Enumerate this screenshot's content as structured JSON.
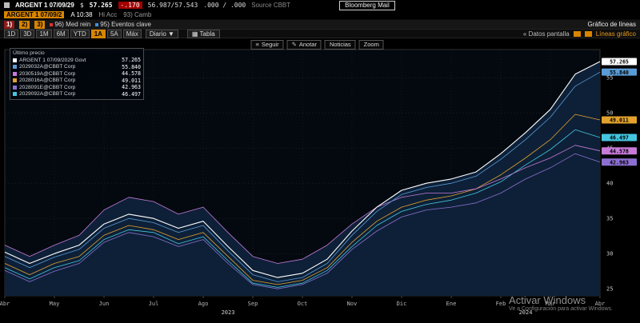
{
  "title_bar": {
    "security": "ARGENT 1 07/09/29",
    "price_label": "$",
    "price": "57.265",
    "change": "-.170",
    "bid_ask": "56.987/57.543",
    "yield_pair": ".000 / .000",
    "source": "Source CBBT",
    "mail_button": "Bloomberg Mail"
  },
  "status_bar": {
    "tag": "ARGENT 1 07/09/2",
    "time": "A 10:38",
    "hi": "Hi Acc",
    "camb": "93) Camb"
  },
  "menu_bar": {
    "tags": [
      "1)",
      "2)",
      "3)"
    ],
    "med_rein": "96) Med rein",
    "eventos": "95) Eventos clave",
    "function_title": "Gráfico de líneas"
  },
  "toolbar": {
    "periods": [
      "1D",
      "3D",
      "1M",
      "6M",
      "YTD",
      "1A",
      "5A",
      "Máx"
    ],
    "active_period": "1A",
    "frequency": "Diario ▼",
    "table_label": "▦ Tabla",
    "actions": [
      {
        "name": "follow",
        "icon": "≡",
        "label": "Seguir"
      },
      {
        "name": "annotate",
        "icon": "✎",
        "label": "Anotar"
      },
      {
        "name": "news",
        "icon": "",
        "label": "Noticias"
      },
      {
        "name": "zoom",
        "icon": "",
        "label": "Zoom"
      }
    ],
    "screen_data": "« Datos pantalla",
    "chart_lines": "Líneas gráfico"
  },
  "legend": {
    "title": "Último precio"
  },
  "watermark": {
    "line1": "Activar Windows",
    "line2": "Ve a Configuración para activar Windows."
  },
  "chart_data": {
    "type": "line",
    "title": "Gráfico de líneas",
    "grid": true,
    "legend_position": "top-left",
    "background": "#03090f",
    "area_color": "#0d2037",
    "x_axis": {
      "months": [
        "Abr",
        "May",
        "Jun",
        "Jul",
        "Ago",
        "Sep",
        "Oct",
        "Nov",
        "Dic",
        "Ene",
        "Feb",
        "Mar",
        "Abr"
      ],
      "years": [
        {
          "label": "2023",
          "pos": 9
        },
        {
          "label": "2024",
          "pos": 21
        }
      ]
    },
    "y_axis": {
      "min": 24,
      "max": 59,
      "ticks": [
        25,
        30,
        35,
        40,
        45,
        50,
        55
      ]
    },
    "series": [
      {
        "name": "argent-2029-govt",
        "label": "ARGENT 1 07/09/2029 Govt",
        "color": "#ffffff",
        "final": "57.265",
        "values": [
          30.2,
          28.6,
          30.0,
          31.2,
          34.2,
          35.6,
          35.0,
          33.6,
          34.6,
          31.0,
          27.6,
          26.6,
          27.2,
          29.2,
          33.2,
          36.6,
          39.0,
          40.0,
          40.6,
          41.6,
          44.2,
          47.2,
          50.5,
          55.5,
          57.3
        ]
      },
      {
        "name": "corp-2029-blue",
        "label": "2029032A@CBBT Corp",
        "color": "#5b9bd5",
        "final": "55.840",
        "values": [
          29.6,
          28.0,
          29.5,
          30.6,
          33.6,
          35.0,
          34.4,
          33.0,
          34.0,
          30.4,
          27.0,
          26.0,
          26.6,
          28.6,
          32.6,
          36.0,
          38.4,
          39.4,
          40.0,
          41.0,
          43.4,
          46.2,
          49.4,
          53.8,
          55.8
        ]
      },
      {
        "name": "corp-2030-magenta",
        "label": "2030519A@CBBT Corp",
        "color": "#c77ad8",
        "final": "44.578",
        "values": [
          31.2,
          29.6,
          31.2,
          32.6,
          36.2,
          38.0,
          37.4,
          35.6,
          36.6,
          33.0,
          29.6,
          28.6,
          29.2,
          31.2,
          34.2,
          36.6,
          38.0,
          38.6,
          38.6,
          39.2,
          40.6,
          42.2,
          43.6,
          45.4,
          44.6
        ]
      },
      {
        "name": "corp-2028-amber",
        "label": "2028016A@CBBT Corp",
        "color": "#e3a22e",
        "final": "49.011",
        "values": [
          28.6,
          27.0,
          28.6,
          29.6,
          32.6,
          34.0,
          33.4,
          32.0,
          33.0,
          29.6,
          26.2,
          25.6,
          26.2,
          28.0,
          31.6,
          34.6,
          36.6,
          37.6,
          38.2,
          39.2,
          41.2,
          43.6,
          46.2,
          49.8,
          49.0
        ]
      },
      {
        "name": "corp-2028-purple",
        "label": "2028091E@CBBT Corp",
        "color": "#8d6fd1",
        "final": "42.963",
        "values": [
          27.6,
          26.0,
          27.5,
          28.6,
          31.6,
          33.0,
          32.4,
          31.0,
          32.0,
          28.6,
          25.6,
          25.0,
          25.6,
          27.2,
          30.6,
          33.2,
          35.2,
          36.2,
          36.6,
          37.2,
          38.6,
          40.6,
          42.2,
          44.2,
          43.0
        ]
      },
      {
        "name": "corp-2029-cyan",
        "label": "2029092A@CBBT Corp",
        "color": "#45c6e0",
        "final": "46.497",
        "values": [
          28.0,
          26.4,
          28.0,
          29.0,
          32.0,
          33.4,
          33.0,
          31.4,
          32.4,
          29.0,
          25.8,
          25.2,
          25.8,
          27.6,
          31.0,
          34.0,
          36.0,
          37.0,
          37.6,
          38.6,
          40.2,
          42.6,
          44.8,
          47.6,
          46.5
        ]
      }
    ]
  }
}
